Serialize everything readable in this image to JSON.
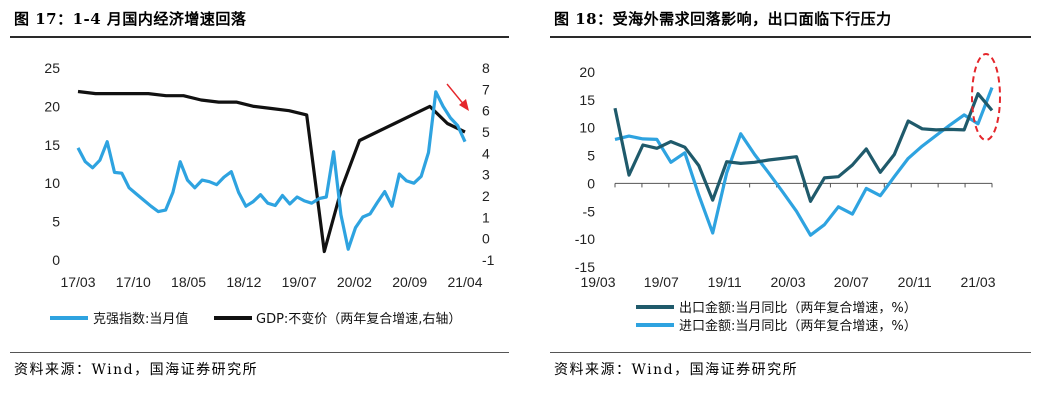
{
  "left": {
    "title": "图 17：1-4 月国内经济增速回落",
    "source": "资料来源：Wind，国海证券研究所",
    "colors": {
      "keqiang": "#2ea3e0",
      "gdp": "#111111",
      "arrow": "#e5262b"
    },
    "chart_data": {
      "type": "line",
      "x_ticks": [
        "17/03",
        "17/10",
        "18/05",
        "18/12",
        "19/07",
        "20/02",
        "20/09",
        "21/04"
      ],
      "ylim_left": [
        0,
        25
      ],
      "yticks_left": [
        "0",
        "5",
        "10",
        "15",
        "20",
        "25"
      ],
      "ylim_right": [
        -1,
        8
      ],
      "yticks_right": [
        "-1",
        "0",
        "1",
        "2",
        "3",
        "4",
        "5",
        "6",
        "7",
        "8"
      ],
      "grid": false,
      "legend_position": "bottom",
      "series": [
        {
          "name": "克强指数:当月值",
          "axis": "left",
          "values": [
            14.6,
            12.8,
            12.0,
            13.0,
            15.4,
            11.4,
            11.3,
            9.4,
            8.6,
            7.8,
            7.0,
            6.3,
            6.5,
            8.8,
            12.8,
            10.4,
            9.4,
            10.4,
            10.2,
            9.8,
            10.8,
            11.5,
            8.8,
            7.0,
            7.6,
            8.5,
            7.4,
            7.1,
            8.4,
            7.3,
            8.2,
            7.7,
            7.4,
            8.0,
            8.2,
            14.1,
            5.9,
            1.4,
            4.2,
            5.6,
            6.0,
            7.5,
            8.9,
            7.0,
            11.2,
            10.3,
            10.0,
            10.9,
            14.0,
            21.9,
            20.0,
            18.5,
            17.5,
            15.4
          ]
        },
        {
          "name": "GDP:不变价（两年复合增速,右轴）",
          "axis": "right",
          "values": [
            6.9,
            6.8,
            6.8,
            6.8,
            6.8,
            6.7,
            6.7,
            6.5,
            6.4,
            6.4,
            6.2,
            6.1,
            6.0,
            5.8,
            -0.6,
            2.4,
            4.6,
            5.0,
            5.4,
            5.8,
            6.2,
            5.4,
            5.0
          ]
        }
      ]
    }
  },
  "right": {
    "title": "图 18：受海外需求回落影响，出口面临下行压力",
    "source": "资料来源：Wind，国海证券研究所",
    "colors": {
      "export": "#1f5a6b",
      "import": "#2ea3e0",
      "ellipse": "#e5262b"
    },
    "chart_data": {
      "type": "line",
      "x_ticks": [
        "19/03",
        "19/07",
        "19/11",
        "20/03",
        "20/07",
        "20/11",
        "21/03"
      ],
      "ylim": [
        -15,
        20
      ],
      "yticks": [
        "-15",
        "-10",
        "-5",
        "0",
        "5",
        "10",
        "15",
        "20"
      ],
      "grid": false,
      "legend_position": "bottom",
      "series": [
        {
          "name": "出口金额:当月同比（两年复合增速，%）",
          "values": [
            13.5,
            1.5,
            6.9,
            6.3,
            7.5,
            6.5,
            3.2,
            -3.0,
            3.9,
            3.6,
            3.8,
            4.2,
            4.5,
            4.8,
            -3.2,
            1.0,
            1.2,
            3.3,
            6.2,
            2.0,
            5.2,
            11.2,
            9.8,
            9.6,
            9.7,
            9.6,
            16.1,
            13.1
          ]
        },
        {
          "name": "进口金额:当月同比（两年复合增速，%）",
          "values": [
            7.9,
            8.5,
            8.0,
            7.9,
            3.8,
            5.5,
            -2.1,
            -8.9,
            1.9,
            8.9,
            5.2,
            1.9,
            -1.5,
            -5.0,
            -9.3,
            -7.4,
            -4.2,
            -5.5,
            -0.9,
            -2.2,
            1.2,
            4.5,
            6.7,
            8.6,
            10.5,
            12.3,
            10.7,
            17.2
          ]
        }
      ]
    }
  }
}
